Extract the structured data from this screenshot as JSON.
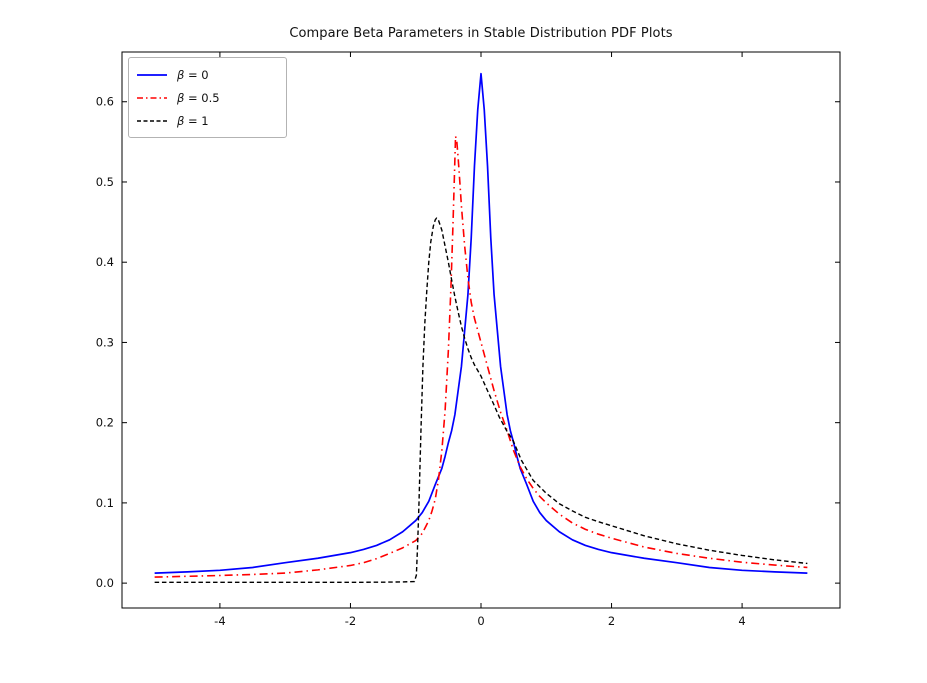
{
  "title": "Compare Beta Parameters in Stable Distribution PDF Plots",
  "chart_data": {
    "type": "line",
    "title": "Compare Beta Parameters in Stable Distribution PDF Plots",
    "xlabel": "",
    "ylabel": "",
    "xlim": [
      -5.5,
      5.5
    ],
    "ylim": [
      -0.031,
      0.662
    ],
    "grid": false,
    "box": true,
    "tick_direction": "in-mirrored",
    "legend_position": "upper left",
    "x_ticks": {
      "values": [
        -4,
        -2,
        0,
        2,
        4
      ],
      "labels": [
        "-4",
        "-2",
        "0",
        "2",
        "4"
      ]
    },
    "y_ticks": {
      "values": [
        0.0,
        0.1,
        0.2,
        0.3,
        0.4,
        0.5,
        0.6
      ],
      "labels": [
        "0.0",
        "0.1",
        "0.2",
        "0.3",
        "0.4",
        "0.5",
        "0.6"
      ]
    },
    "series": [
      {
        "name": "β = 0",
        "symbol": "β",
        "rest": " = 0",
        "color": "#0000ff",
        "style": "solid",
        "peak": {
          "x": 0.0,
          "y": 0.635
        },
        "points": [
          [
            -5,
            0.0125
          ],
          [
            -4.5,
            0.014
          ],
          [
            -4,
            0.016
          ],
          [
            -3.5,
            0.0195
          ],
          [
            -3,
            0.0255
          ],
          [
            -2.5,
            0.031
          ],
          [
            -2,
            0.038
          ],
          [
            -1.8,
            0.042
          ],
          [
            -1.6,
            0.047
          ],
          [
            -1.4,
            0.054
          ],
          [
            -1.2,
            0.064
          ],
          [
            -1,
            0.078
          ],
          [
            -0.9,
            0.088
          ],
          [
            -0.8,
            0.102
          ],
          [
            -0.7,
            0.123
          ],
          [
            -0.6,
            0.143
          ],
          [
            -0.55,
            0.158
          ],
          [
            -0.5,
            0.175
          ],
          [
            -0.45,
            0.19
          ],
          [
            -0.4,
            0.21
          ],
          [
            -0.35,
            0.24
          ],
          [
            -0.3,
            0.27
          ],
          [
            -0.25,
            0.315
          ],
          [
            -0.2,
            0.36
          ],
          [
            -0.15,
            0.43
          ],
          [
            -0.1,
            0.52
          ],
          [
            -0.05,
            0.59
          ],
          [
            0,
            0.635
          ],
          [
            0.05,
            0.59
          ],
          [
            0.1,
            0.52
          ],
          [
            0.15,
            0.43
          ],
          [
            0.2,
            0.36
          ],
          [
            0.25,
            0.315
          ],
          [
            0.3,
            0.27
          ],
          [
            0.35,
            0.24
          ],
          [
            0.4,
            0.21
          ],
          [
            0.45,
            0.19
          ],
          [
            0.5,
            0.175
          ],
          [
            0.55,
            0.158
          ],
          [
            0.6,
            0.143
          ],
          [
            0.7,
            0.123
          ],
          [
            0.8,
            0.102
          ],
          [
            0.9,
            0.088
          ],
          [
            1,
            0.078
          ],
          [
            1.2,
            0.064
          ],
          [
            1.4,
            0.054
          ],
          [
            1.6,
            0.047
          ],
          [
            1.8,
            0.042
          ],
          [
            2,
            0.038
          ],
          [
            2.5,
            0.031
          ],
          [
            3,
            0.0255
          ],
          [
            3.5,
            0.0195
          ],
          [
            4,
            0.016
          ],
          [
            4.5,
            0.014
          ],
          [
            5,
            0.0125
          ]
        ]
      },
      {
        "name": "β = 0.5",
        "symbol": "β",
        "rest": " = 0.5",
        "color": "#ff0000",
        "style": "dashdot",
        "peak": {
          "x": -0.39,
          "y": 0.557
        },
        "points": [
          [
            -5,
            0.0075
          ],
          [
            -4.5,
            0.0085
          ],
          [
            -4,
            0.0095
          ],
          [
            -3.5,
            0.0108
          ],
          [
            -3,
            0.0125
          ],
          [
            -2.5,
            0.0165
          ],
          [
            -2,
            0.022
          ],
          [
            -1.8,
            0.0255
          ],
          [
            -1.6,
            0.0305
          ],
          [
            -1.4,
            0.037
          ],
          [
            -1.2,
            0.044
          ],
          [
            -1,
            0.053
          ],
          [
            -0.9,
            0.062
          ],
          [
            -0.85,
            0.07
          ],
          [
            -0.8,
            0.078
          ],
          [
            -0.75,
            0.09
          ],
          [
            -0.7,
            0.105
          ],
          [
            -0.65,
            0.13
          ],
          [
            -0.6,
            0.165
          ],
          [
            -0.55,
            0.215
          ],
          [
            -0.5,
            0.29
          ],
          [
            -0.46,
            0.37
          ],
          [
            -0.43,
            0.445
          ],
          [
            -0.41,
            0.5
          ],
          [
            -0.39,
            0.557
          ],
          [
            -0.37,
            0.55
          ],
          [
            -0.35,
            0.53
          ],
          [
            -0.32,
            0.495
          ],
          [
            -0.3,
            0.47
          ],
          [
            -0.25,
            0.42
          ],
          [
            -0.2,
            0.38
          ],
          [
            -0.15,
            0.35
          ],
          [
            -0.1,
            0.33
          ],
          [
            -0.05,
            0.315
          ],
          [
            0,
            0.3
          ],
          [
            0.1,
            0.27
          ],
          [
            0.15,
            0.255
          ],
          [
            0.2,
            0.24
          ],
          [
            0.3,
            0.213
          ],
          [
            0.4,
            0.19
          ],
          [
            0.5,
            0.165
          ],
          [
            0.6,
            0.145
          ],
          [
            0.7,
            0.13
          ],
          [
            0.8,
            0.118
          ],
          [
            0.9,
            0.108
          ],
          [
            1,
            0.1
          ],
          [
            1.2,
            0.086
          ],
          [
            1.4,
            0.075
          ],
          [
            1.6,
            0.067
          ],
          [
            1.8,
            0.061
          ],
          [
            2,
            0.056
          ],
          [
            2.5,
            0.045
          ],
          [
            3,
            0.037
          ],
          [
            3.5,
            0.031
          ],
          [
            4,
            0.026
          ],
          [
            4.5,
            0.0225
          ],
          [
            5,
            0.0195
          ]
        ]
      },
      {
        "name": "β = 1",
        "symbol": "β",
        "rest": " = 1",
        "color": "#000000",
        "style": "dashed",
        "peak": {
          "x": -0.68,
          "y": 0.455
        },
        "points": [
          [
            -5,
            0.001
          ],
          [
            -4,
            0.001
          ],
          [
            -3,
            0.001
          ],
          [
            -2,
            0.001
          ],
          [
            -1.5,
            0.0012
          ],
          [
            -1.2,
            0.0015
          ],
          [
            -1.02,
            0.002
          ],
          [
            -0.99,
            0.01
          ],
          [
            -0.97,
            0.05
          ],
          [
            -0.95,
            0.1
          ],
          [
            -0.92,
            0.19
          ],
          [
            -0.89,
            0.27
          ],
          [
            -0.86,
            0.325
          ],
          [
            -0.83,
            0.365
          ],
          [
            -0.8,
            0.4
          ],
          [
            -0.77,
            0.425
          ],
          [
            -0.73,
            0.445
          ],
          [
            -0.7,
            0.453
          ],
          [
            -0.68,
            0.455
          ],
          [
            -0.65,
            0.452
          ],
          [
            -0.6,
            0.44
          ],
          [
            -0.55,
            0.42
          ],
          [
            -0.5,
            0.4
          ],
          [
            -0.45,
            0.378
          ],
          [
            -0.4,
            0.357
          ],
          [
            -0.35,
            0.338
          ],
          [
            -0.3,
            0.32
          ],
          [
            -0.25,
            0.305
          ],
          [
            -0.2,
            0.292
          ],
          [
            -0.15,
            0.281
          ],
          [
            -0.1,
            0.272
          ],
          [
            -0.05,
            0.265
          ],
          [
            0,
            0.258
          ],
          [
            0.11,
            0.238
          ],
          [
            0.2,
            0.222
          ],
          [
            0.28,
            0.207
          ],
          [
            0.4,
            0.189
          ],
          [
            0.49,
            0.178
          ],
          [
            0.62,
            0.153
          ],
          [
            0.8,
            0.128
          ],
          [
            1,
            0.112
          ],
          [
            1.2,
            0.099
          ],
          [
            1.4,
            0.09
          ],
          [
            1.6,
            0.082
          ],
          [
            1.8,
            0.0765
          ],
          [
            2,
            0.0715
          ],
          [
            2.5,
            0.059
          ],
          [
            3,
            0.049
          ],
          [
            3.5,
            0.041
          ],
          [
            4,
            0.0345
          ],
          [
            4.5,
            0.029
          ],
          [
            5,
            0.0245
          ]
        ]
      }
    ]
  }
}
